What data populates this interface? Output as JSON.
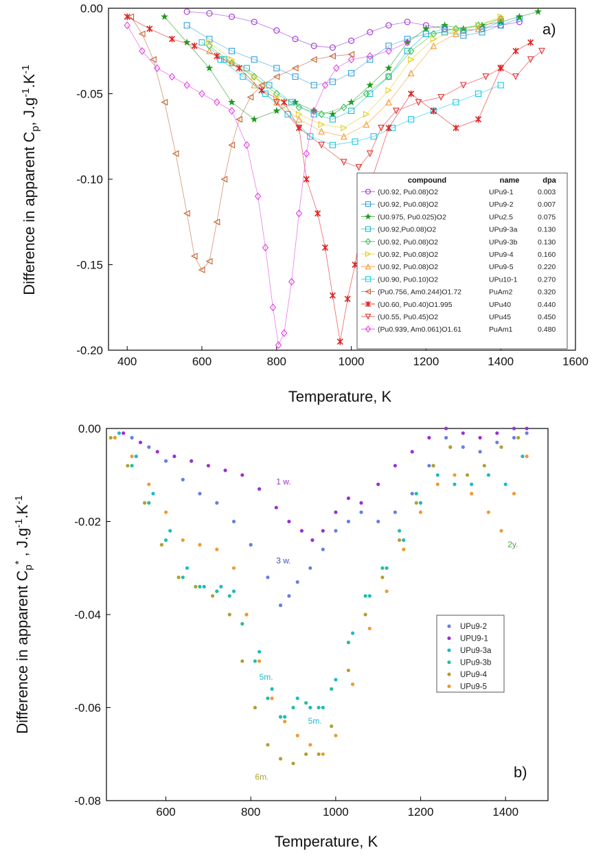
{
  "chart_data": [
    {
      "type": "scatter",
      "panel": "a)",
      "xlabel": "Temperature, K",
      "ylabel": "Difference in apparent C",
      "ylabel_sub": "p",
      "ylabel_tail": ", J.g",
      "ylabel_sup": "-1",
      "ylabel_end": ".K",
      "ylabel_sup2": "-1",
      "xlim": [
        350,
        1600
      ],
      "ylim": [
        -0.2,
        0.0
      ],
      "xticks": [
        400,
        600,
        800,
        1000,
        1200,
        1400,
        1600
      ],
      "yticks": [
        0.0,
        -0.05,
        -0.1,
        -0.15,
        -0.2
      ],
      "ytick_labels": [
        "0.00",
        "-0.05",
        "-0.10",
        "-0.15",
        "-0.20"
      ],
      "legend_headers": [
        "compound",
        "name",
        "dpa"
      ],
      "series": [
        {
          "compound": "(U0.92, Pu0.08)O2",
          "name": "UPu9-1",
          "dpa": "0.003",
          "color": "#9b30d0",
          "marker": "circle",
          "x": [
            560,
            620,
            680,
            740,
            800,
            850,
            900,
            950,
            1000,
            1050,
            1100,
            1150,
            1200,
            1250,
            1300,
            1350,
            1400,
            1450
          ],
          "y": [
            -0.002,
            -0.003,
            -0.005,
            -0.008,
            -0.013,
            -0.018,
            -0.022,
            -0.023,
            -0.019,
            -0.014,
            -0.01,
            -0.008,
            -0.01,
            -0.012,
            -0.013,
            -0.012,
            -0.01,
            -0.008
          ]
        },
        {
          "compound": "(U0.92, Pu0.08)O2",
          "name": "UPu9-2",
          "dpa": "0.007",
          "color": "#2fa0e0",
          "marker": "square",
          "x": [
            560,
            620,
            680,
            740,
            800,
            850,
            900,
            950,
            1000,
            1050,
            1100,
            1150,
            1200,
            1250,
            1300,
            1350,
            1400,
            1450
          ],
          "y": [
            -0.01,
            -0.018,
            -0.025,
            -0.03,
            -0.035,
            -0.04,
            -0.045,
            -0.043,
            -0.038,
            -0.03,
            -0.022,
            -0.018,
            -0.015,
            -0.014,
            -0.016,
            -0.014,
            -0.01,
            -0.006
          ]
        },
        {
          "compound": "(U0.975, Pu0.025)O2",
          "name": "UPu2.5",
          "dpa": "0.075",
          "color": "#1f9a1f",
          "marker": "star",
          "x": [
            500,
            560,
            620,
            680,
            740,
            800,
            850,
            900,
            950,
            1000,
            1050,
            1100,
            1150,
            1200,
            1250,
            1300,
            1350,
            1400,
            1450,
            1500
          ],
          "y": [
            -0.005,
            -0.02,
            -0.035,
            -0.055,
            -0.065,
            -0.06,
            -0.055,
            -0.06,
            -0.062,
            -0.055,
            -0.045,
            -0.035,
            -0.02,
            -0.012,
            -0.01,
            -0.012,
            -0.01,
            -0.008,
            -0.005,
            -0.002
          ]
        },
        {
          "compound": "(U0.92,Pu0.08)O2",
          "name": "UPu9-3a",
          "dpa": "0.130",
          "color": "#20b8c8",
          "marker": "square",
          "x": [
            600,
            660,
            720,
            780,
            840,
            900,
            950,
            1000,
            1050,
            1100,
            1150,
            1200,
            1250,
            1300,
            1350,
            1400
          ],
          "y": [
            -0.02,
            -0.03,
            -0.035,
            -0.045,
            -0.055,
            -0.062,
            -0.065,
            -0.06,
            -0.05,
            -0.04,
            -0.025,
            -0.015,
            -0.012,
            -0.013,
            -0.012,
            -0.008
          ]
        },
        {
          "compound": "(U0.92, Pu0.08)O2",
          "name": "UPu9-3b",
          "dpa": "0.130",
          "color": "#33c050",
          "marker": "diamond",
          "x": [
            620,
            680,
            740,
            800,
            860,
            920,
            980,
            1040,
            1100,
            1160,
            1220,
            1280,
            1340,
            1400
          ],
          "y": [
            -0.022,
            -0.032,
            -0.04,
            -0.05,
            -0.058,
            -0.062,
            -0.058,
            -0.05,
            -0.04,
            -0.025,
            -0.015,
            -0.012,
            -0.01,
            -0.006
          ]
        },
        {
          "compound": "(U0.92, Pu0.08)O2",
          "name": "UPu9-4",
          "dpa": "0.160",
          "color": "#e0d020",
          "marker": "tri-right",
          "x": [
            620,
            680,
            740,
            800,
            860,
            920,
            980,
            1040,
            1100,
            1160,
            1220,
            1280,
            1340,
            1400
          ],
          "y": [
            -0.02,
            -0.03,
            -0.04,
            -0.052,
            -0.062,
            -0.068,
            -0.07,
            -0.062,
            -0.048,
            -0.03,
            -0.018,
            -0.013,
            -0.01,
            -0.005
          ]
        },
        {
          "compound": "(U0.92, Pu0.08)O2",
          "name": "UPu9-5",
          "dpa": "0.220",
          "color": "#f09a30",
          "marker": "tri-up",
          "x": [
            620,
            680,
            740,
            800,
            860,
            920,
            980,
            1040,
            1100,
            1160,
            1220,
            1280,
            1340,
            1400
          ],
          "y": [
            -0.025,
            -0.032,
            -0.045,
            -0.055,
            -0.065,
            -0.072,
            -0.075,
            -0.068,
            -0.055,
            -0.038,
            -0.022,
            -0.015,
            -0.012,
            -0.006
          ]
        },
        {
          "compound": "(U0.90, Pu0.10)O2",
          "name": "UPu10-1",
          "dpa": "0.270",
          "color": "#10c8e8",
          "marker": "square",
          "x": [
            650,
            710,
            770,
            830,
            890,
            950,
            1010,
            1060,
            1110,
            1160,
            1220,
            1280,
            1340,
            1400
          ],
          "y": [
            -0.03,
            -0.04,
            -0.05,
            -0.062,
            -0.075,
            -0.08,
            -0.078,
            -0.075,
            -0.07,
            -0.065,
            -0.06,
            -0.055,
            -0.05,
            -0.045
          ]
        },
        {
          "compound": "(Pu0.756, Am0.244)O1.72",
          "name": "PuAm2",
          "dpa": "0.320",
          "color": "#c06030",
          "marker": "tri-left",
          "x": [
            410,
            440,
            470,
            500,
            530,
            560,
            580,
            600,
            620,
            640,
            660,
            680,
            700,
            730,
            760,
            800,
            850,
            900,
            950,
            1000
          ],
          "y": [
            -0.005,
            -0.015,
            -0.03,
            -0.055,
            -0.085,
            -0.12,
            -0.145,
            -0.153,
            -0.148,
            -0.125,
            -0.1,
            -0.08,
            -0.065,
            -0.052,
            -0.045,
            -0.04,
            -0.035,
            -0.03,
            -0.028,
            -0.027
          ]
        },
        {
          "compound": "(U0.60, Pu0.40)O1.995",
          "name": "UPu40",
          "dpa": "0.440",
          "color": "#e02020",
          "marker": "cross",
          "x": [
            400,
            460,
            520,
            580,
            640,
            700,
            760,
            820,
            860,
            880,
            910,
            930,
            950,
            970,
            990,
            1010,
            1040,
            1100,
            1160,
            1220,
            1280,
            1340,
            1400,
            1440,
            1480
          ],
          "y": [
            -0.005,
            -0.012,
            -0.018,
            -0.022,
            -0.028,
            -0.035,
            -0.048,
            -0.055,
            -0.07,
            -0.1,
            -0.12,
            -0.14,
            -0.168,
            -0.195,
            -0.17,
            -0.15,
            -0.11,
            -0.07,
            -0.05,
            -0.06,
            -0.07,
            -0.065,
            -0.035,
            -0.025,
            -0.02
          ]
        },
        {
          "compound": "(U0.55, Pu0.45)O2",
          "name": "UPu45",
          "dpa": "0.450",
          "color": "#e03030",
          "marker": "tri-down",
          "x": [
            800,
            860,
            920,
            980,
            1020,
            1050,
            1080,
            1120,
            1180,
            1240,
            1300,
            1360,
            1400,
            1440,
            1480,
            1510
          ],
          "y": [
            -0.055,
            -0.07,
            -0.08,
            -0.09,
            -0.093,
            -0.085,
            -0.07,
            -0.06,
            -0.055,
            -0.052,
            -0.045,
            -0.04,
            -0.035,
            -0.04,
            -0.03,
            -0.025
          ]
        },
        {
          "compound": "(Pu0.939, Am0.061)O1.61",
          "name": "PuAm1",
          "dpa": "0.480",
          "color": "#e040e0",
          "marker": "diamond",
          "x": [
            400,
            440,
            480,
            520,
            560,
            600,
            640,
            680,
            720,
            750,
            770,
            790,
            805,
            820,
            840,
            860,
            880,
            900,
            930,
            960,
            1000,
            1050,
            1100,
            1150
          ],
          "y": [
            -0.01,
            -0.025,
            -0.035,
            -0.04,
            -0.045,
            -0.05,
            -0.055,
            -0.06,
            -0.08,
            -0.11,
            -0.14,
            -0.175,
            -0.197,
            -0.19,
            -0.16,
            -0.12,
            -0.085,
            -0.06,
            -0.045,
            -0.035,
            -0.03,
            -0.028,
            -0.025,
            -0.02
          ]
        }
      ]
    },
    {
      "type": "scatter",
      "panel": "b)",
      "xlabel": "Temperature, K",
      "ylabel": "Difference in apparent C",
      "ylabel_sub": "p",
      "ylabel_sup_star": "*",
      "ylabel_tail": " ,  J.g",
      "ylabel_sup": "-1",
      "ylabel_end": ".K",
      "ylabel_sup2": "-1",
      "xlim": [
        460,
        1500
      ],
      "ylim": [
        -0.08,
        0.0
      ],
      "xticks": [
        600,
        800,
        1000,
        1200,
        1400
      ],
      "yticks": [
        0.0,
        -0.02,
        -0.04,
        -0.06,
        -0.08
      ],
      "ytick_labels": [
        "0.00",
        "-0.02",
        "-0.04",
        "-0.06",
        "-0.08"
      ],
      "annotations": [
        {
          "text": "1 w.",
          "x": 860,
          "y": -0.012,
          "color": "#9b30d0"
        },
        {
          "text": "3 w.",
          "x": 860,
          "y": -0.029,
          "color": "#4050c0"
        },
        {
          "text": "5m.",
          "x": 820,
          "y": -0.054,
          "color": "#20b8c8"
        },
        {
          "text": "5m.",
          "x": 935,
          "y": -0.0635,
          "color": "#20b8c8"
        },
        {
          "text": "6m.",
          "x": 810,
          "y": -0.0755,
          "color": "#b0a030"
        },
        {
          "text": "2y.",
          "x": 1405,
          "y": -0.0255,
          "color": "#50a050"
        }
      ],
      "series": [
        {
          "name": "UPu9-2",
          "color": "#6680e0",
          "x": [
            520,
            560,
            600,
            640,
            680,
            720,
            760,
            800,
            840,
            870,
            890,
            910,
            940,
            970,
            1000,
            1030,
            1060,
            1100,
            1140,
            1180,
            1220,
            1260,
            1300,
            1340,
            1380,
            1420,
            1450
          ],
          "y": [
            -0.002,
            -0.004,
            -0.007,
            -0.011,
            -0.014,
            -0.016,
            -0.02,
            -0.025,
            -0.032,
            -0.038,
            -0.036,
            -0.033,
            -0.03,
            -0.026,
            -0.022,
            -0.02,
            -0.018,
            -0.02,
            -0.018,
            -0.014,
            -0.008,
            -0.002,
            -0.004,
            -0.005,
            -0.003,
            -0.002,
            -0.001
          ]
        },
        {
          "name": "UPU9-1",
          "color": "#9b30d0",
          "x": [
            500,
            540,
            580,
            620,
            660,
            700,
            740,
            780,
            820,
            860,
            890,
            920,
            945,
            970,
            1000,
            1030,
            1060,
            1100,
            1140,
            1180,
            1220,
            1260,
            1300,
            1340,
            1380,
            1420,
            1450
          ],
          "y": [
            -0.001,
            -0.003,
            -0.005,
            -0.006,
            -0.007,
            -0.008,
            -0.009,
            -0.01,
            -0.013,
            -0.017,
            -0.02,
            -0.022,
            -0.024,
            -0.022,
            -0.018,
            -0.015,
            -0.016,
            -0.012,
            -0.008,
            -0.005,
            -0.002,
            0.0,
            -0.001,
            -0.002,
            -0.001,
            0.0,
            0.0
          ]
        },
        {
          "name": "UPu9-3a",
          "color": "#20b8c8",
          "x": [
            490,
            530,
            570,
            610,
            650,
            690,
            730,
            760,
            790,
            820,
            850,
            880,
            910,
            940,
            970,
            1000,
            1040,
            1080,
            1120,
            1160,
            1200,
            1240,
            1280,
            1320,
            1360,
            1400,
            1440
          ],
          "y": [
            -0.001,
            -0.006,
            -0.014,
            -0.022,
            -0.03,
            -0.034,
            -0.034,
            -0.035,
            -0.04,
            -0.048,
            -0.056,
            -0.062,
            -0.058,
            -0.06,
            -0.06,
            -0.054,
            -0.044,
            -0.036,
            -0.03,
            -0.024,
            -0.016,
            -0.01,
            -0.012,
            -0.012,
            -0.01,
            -0.012,
            -0.006
          ]
        },
        {
          "name": "UPu9-3b",
          "color": "#20c0a0",
          "x": [
            480,
            520,
            560,
            600,
            640,
            680,
            720,
            750,
            780,
            810,
            840,
            870,
            900,
            930,
            960,
            990,
            1030,
            1070,
            1110,
            1150,
            1190,
            1230,
            1270
          ],
          "y": [
            -0.002,
            -0.008,
            -0.016,
            -0.024,
            -0.032,
            -0.034,
            -0.035,
            -0.036,
            -0.042,
            -0.05,
            -0.058,
            -0.062,
            -0.06,
            -0.059,
            -0.06,
            -0.056,
            -0.046,
            -0.036,
            -0.03,
            -0.022,
            -0.014,
            -0.008,
            -0.004
          ]
        },
        {
          "name": "UPu9-4",
          "color": "#b0a030",
          "x": [
            470,
            510,
            550,
            590,
            630,
            670,
            710,
            750,
            780,
            810,
            840,
            870,
            900,
            930,
            960,
            990,
            1030,
            1070,
            1110,
            1150,
            1190,
            1230,
            1270,
            1310,
            1350,
            1390,
            1430
          ],
          "y": [
            -0.002,
            -0.008,
            -0.016,
            -0.025,
            -0.032,
            -0.034,
            -0.036,
            -0.04,
            -0.05,
            -0.06,
            -0.068,
            -0.071,
            -0.072,
            -0.07,
            -0.07,
            -0.064,
            -0.052,
            -0.04,
            -0.032,
            -0.024,
            -0.016,
            -0.008,
            -0.004,
            -0.01,
            -0.008,
            -0.004,
            -0.002
          ]
        },
        {
          "name": "UPu9-5",
          "color": "#f09a30",
          "x": [
            480,
            520,
            560,
            600,
            640,
            680,
            720,
            760,
            790,
            820,
            850,
            880,
            910,
            940,
            970,
            1000,
            1040,
            1080,
            1120,
            1160,
            1200,
            1240,
            1280,
            1320,
            1360,
            1390,
            1420,
            1450
          ],
          "y": [
            -0.002,
            -0.006,
            -0.012,
            -0.018,
            -0.024,
            -0.025,
            -0.026,
            -0.03,
            -0.04,
            -0.05,
            -0.058,
            -0.063,
            -0.066,
            -0.068,
            -0.07,
            -0.066,
            -0.055,
            -0.043,
            -0.035,
            -0.026,
            -0.018,
            -0.012,
            -0.01,
            -0.014,
            -0.018,
            -0.022,
            -0.014,
            -0.006
          ]
        }
      ]
    }
  ]
}
